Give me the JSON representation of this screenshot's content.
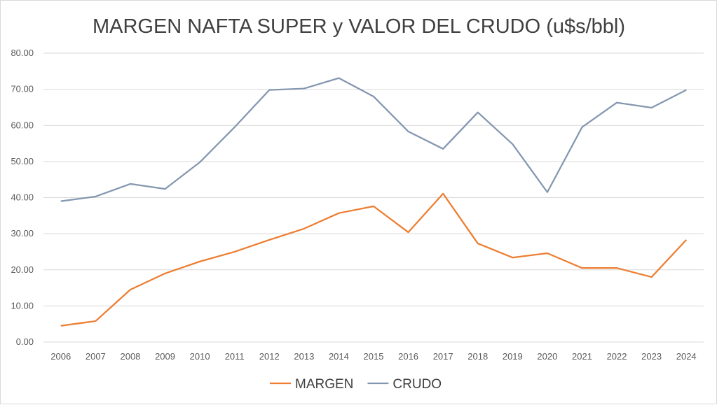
{
  "chart_data": {
    "type": "line",
    "title": "MARGEN NAFTA SUPER y VALOR DEL CRUDO (u$s/bbl)",
    "xlabel": "",
    "ylabel": "",
    "categories": [
      "2006",
      "2007",
      "2008",
      "2009",
      "2010",
      "2011",
      "2012",
      "2013",
      "2014",
      "2015",
      "2016",
      "2017",
      "2018",
      "2019",
      "2020",
      "2021",
      "2022",
      "2023",
      "2024"
    ],
    "ylim": [
      0,
      80
    ],
    "yticks": [
      "0.00",
      "10.00",
      "20.00",
      "30.00",
      "40.00",
      "50.00",
      "60.00",
      "70.00",
      "80.00"
    ],
    "grid": true,
    "legend_position": "bottom",
    "series": [
      {
        "name": "MARGEN",
        "color": "#ED7D31",
        "values": [
          4.5,
          5.8,
          14.5,
          19.0,
          22.3,
          25.0,
          28.3,
          31.4,
          35.7,
          37.6,
          30.4,
          41.1,
          27.3,
          23.4,
          24.6,
          20.5,
          20.5,
          18.0,
          28.3
        ]
      },
      {
        "name": "CRUDO",
        "color": "#8497B0",
        "values": [
          39.0,
          40.3,
          43.8,
          42.4,
          49.8,
          59.5,
          69.8,
          70.2,
          73.1,
          68.0,
          58.3,
          53.5,
          63.6,
          54.8,
          41.5,
          59.5,
          66.3,
          64.9,
          69.8
        ]
      }
    ]
  }
}
